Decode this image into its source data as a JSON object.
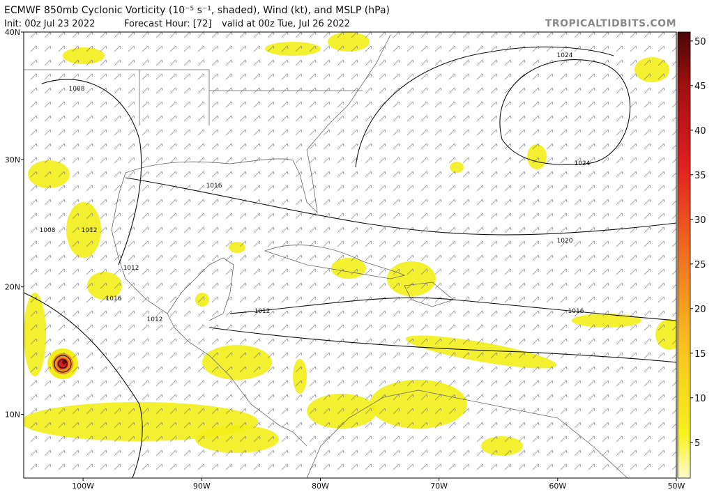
{
  "header": {
    "title": "ECMWF 850mb Cyclonic Vorticity (10⁻⁵ s⁻¹, shaded), Wind (kt), and MSLP (hPa)",
    "init": "Init: 00z Jul 23 2022",
    "forecast_hour": "Forecast Hour: [72]",
    "valid": "valid at 00z Tue, Jul 26 2022",
    "credit": "TROPICALTIDBITS.COM"
  },
  "map": {
    "lon_range": [
      -105,
      -50
    ],
    "lat_range": [
      5,
      40
    ],
    "lon_ticks": [
      {
        "value": -100,
        "label": "100W"
      },
      {
        "value": -90,
        "label": "90W"
      },
      {
        "value": -80,
        "label": "80W"
      },
      {
        "value": -70,
        "label": "70W"
      },
      {
        "value": -60,
        "label": "60W"
      },
      {
        "value": -50,
        "label": "50W"
      }
    ],
    "lat_ticks": [
      {
        "value": 10,
        "label": "10N"
      },
      {
        "value": 20,
        "label": "20N"
      },
      {
        "value": 30,
        "label": "30N"
      },
      {
        "value": 40,
        "label": "40N"
      }
    ]
  },
  "colorbar": {
    "range": [
      1,
      51
    ],
    "ticks": [
      5,
      10,
      15,
      20,
      25,
      30,
      35,
      40,
      45,
      50
    ]
  },
  "isobar_labels": [
    1024,
    1024,
    1020,
    1016,
    1016,
    1012,
    1012,
    1012,
    1016,
    1008,
    1008,
    1012
  ]
}
